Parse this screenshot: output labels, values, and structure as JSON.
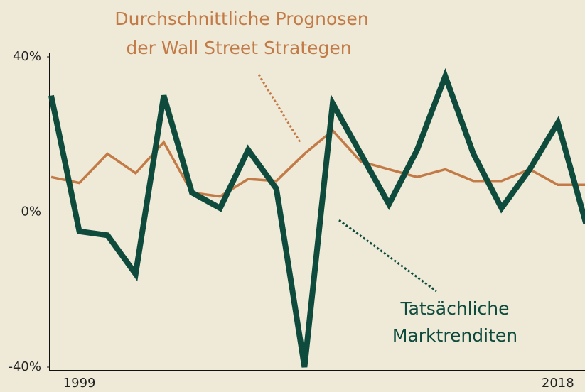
{
  "chart_data": {
    "type": "line",
    "annotations": [
      "Durchschnittliche Prognosen",
      "der Wall Street Strategen",
      "Tatsächliche",
      "Marktrenditen"
    ],
    "categories": [
      null,
      "1999",
      null,
      null,
      null,
      null,
      null,
      null,
      null,
      null,
      null,
      null,
      null,
      null,
      null,
      null,
      null,
      null,
      "2018",
      null
    ],
    "series": [
      {
        "color": "#c27b47",
        "values": [
          9,
          7.5,
          15,
          10,
          18,
          5,
          4,
          8.5,
          8,
          15,
          21,
          13,
          11,
          9,
          11,
          8,
          8,
          11,
          7,
          7
        ]
      },
      {
        "color": "#0e4b3d",
        "values": [
          30,
          -5,
          -6,
          -16,
          30,
          5,
          1,
          16,
          6,
          -40,
          28,
          15,
          2,
          16,
          35,
          15,
          1,
          11,
          23,
          -3
        ]
      }
    ],
    "ylim": [
      -40,
      40
    ],
    "yticks": [
      {
        "value": 40,
        "label": "40%"
      },
      {
        "value": 0,
        "label": "0%"
      },
      {
        "value": -40,
        "label": "-40%"
      }
    ]
  }
}
